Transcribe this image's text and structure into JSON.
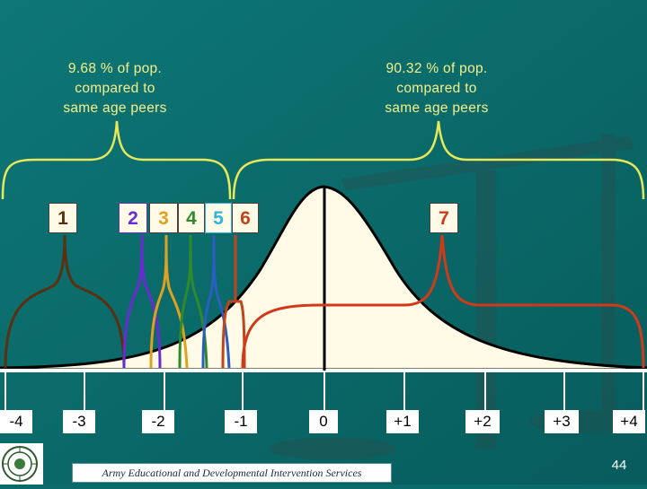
{
  "callouts": {
    "left": [
      "9.68 % of pop.",
      "compared to",
      "same age peers"
    ],
    "right": [
      "90.32 % of pop.",
      "compared to",
      "same age peers"
    ]
  },
  "boxes": [
    {
      "label": "1",
      "color": "#5a3010"
    },
    {
      "label": "2",
      "color": "#6a2bd0"
    },
    {
      "label": "3",
      "color": "#e0a020"
    },
    {
      "label": "4",
      "color": "#2f8a2f"
    },
    {
      "label": "5",
      "color": "#2fb4e0"
    },
    {
      "label": "6",
      "color": "#c0441c"
    },
    {
      "label": "7",
      "color": "#d03a1a"
    }
  ],
  "axis_ticks": [
    "-4",
    "-3",
    "-2",
    "-1",
    "0",
    "+1",
    "+2",
    "+3",
    "+4"
  ],
  "footer": "Army Educational and Developmental Intervention Services",
  "page_number": "44",
  "colors": {
    "background": "#0b6b6b",
    "brace": "#e8e85a",
    "curve_fill": "#fffbe6",
    "distribution_1": "#5a3010",
    "distribution_2": "#6a2bd0",
    "distribution_3": "#e0a020",
    "distribution_4": "#2f8a2f",
    "distribution_5": "#2fb4e0",
    "distribution_6": "#c0441c",
    "distribution_7": "#d03a1a"
  },
  "icons": {
    "logo": "seal-logo-icon"
  }
}
